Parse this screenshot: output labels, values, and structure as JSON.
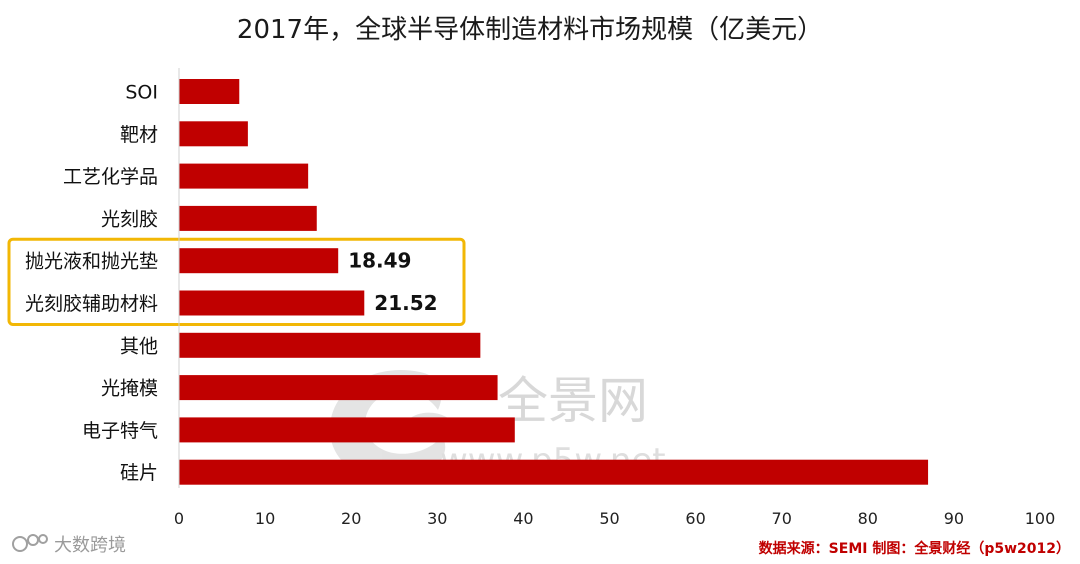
{
  "chart_data": {
    "type": "bar",
    "orientation": "horizontal",
    "title": "2017年，全球半导体制造材料市场规模（亿美元）",
    "categories": [
      "SOI",
      "靶材",
      "工艺化学品",
      "光刻胶",
      "抛光液和抛光垫",
      "光刻胶辅助材料",
      "其他",
      "光掩模",
      "电子特气",
      "硅片"
    ],
    "values": [
      7,
      8,
      15,
      16,
      18.49,
      21.52,
      35,
      37,
      39,
      87
    ],
    "data_labels": [
      {
        "category": "抛光液和抛光垫",
        "text": "18.49"
      },
      {
        "category": "光刻胶辅助材料",
        "text": "21.52"
      }
    ],
    "highlighted": [
      "抛光液和抛光垫",
      "光刻胶辅助材料"
    ],
    "xlim": [
      0,
      100
    ],
    "xticks": [
      0,
      10,
      20,
      30,
      40,
      50,
      60,
      70,
      80,
      90,
      100
    ],
    "grid": false,
    "legend": "none",
    "bar_color": "#c00000",
    "highlight_color": "#f2b705"
  },
  "source": "数据来源：SEMI  制图：全景财经（p5w2012）",
  "watermark": {
    "text": "全景网",
    "url": "www.p5w.net"
  },
  "brand": "大数跨境"
}
